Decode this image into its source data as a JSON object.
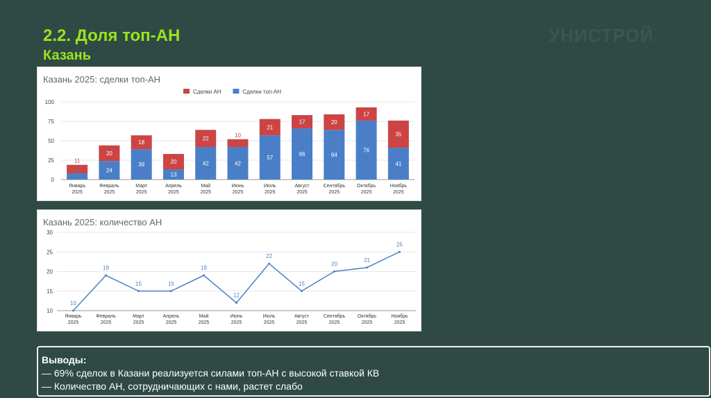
{
  "slide": {
    "title": "2.2. Доля топ-АН",
    "subtitle": "Казань",
    "logo": "УНИСТРОЙ"
  },
  "colors": {
    "background": "#2f4a44",
    "accent": "#9be31f",
    "deals_an": "#cc4444",
    "deals_top_an": "#4a7fc8",
    "line": "#4a7fc8"
  },
  "chart_data": [
    {
      "type": "bar",
      "stacked": true,
      "title": "Казань 2025: сделки топ-АН",
      "categories": [
        "Январь 2025",
        "Февраль 2025",
        "Март 2025",
        "Апрель 2025",
        "Май 2025",
        "Июнь 2025",
        "Июль 2025",
        "Август 2025",
        "Сентябрь 2025",
        "Октябрь 2025",
        "Ноябрь 2025"
      ],
      "series": [
        {
          "name": "Сделки топ-АН",
          "values": [
            8,
            24,
            39,
            13,
            42,
            42,
            57,
            66,
            64,
            76,
            41
          ],
          "color": "#4a7fc8"
        },
        {
          "name": "Сделки АН",
          "values": [
            11,
            20,
            18,
            20,
            22,
            10,
            21,
            17,
            20,
            17,
            35
          ],
          "color": "#cc4444"
        }
      ],
      "ylim": [
        0,
        100
      ],
      "yticks": [
        0,
        25,
        50,
        75,
        100
      ],
      "legend": "top-center",
      "grid": true
    },
    {
      "type": "line",
      "title": "Казань 2025: количество АН",
      "categories": [
        "Январь 2025",
        "Февраль 2025",
        "Март 2025",
        "Апрель 2025",
        "Май 2025",
        "Июнь 2025",
        "Июль 2025",
        "Август 2025",
        "Сентябрь 2025",
        "Октябрь 2025",
        "Ноябрь 2025"
      ],
      "values": [
        10,
        19,
        15,
        15,
        19,
        12,
        22,
        15,
        20,
        21,
        25
      ],
      "ylim": [
        10,
        30
      ],
      "yticks": [
        10,
        15,
        20,
        25,
        30
      ],
      "grid": true
    }
  ],
  "conclusions": {
    "heading": "Выводы:",
    "items": [
      "— 69% сделок в Казани реализуется силами топ-АН с высокой ставкой КВ",
      "— Количество АН, сотрудничающих с нами, растет слабо"
    ]
  }
}
